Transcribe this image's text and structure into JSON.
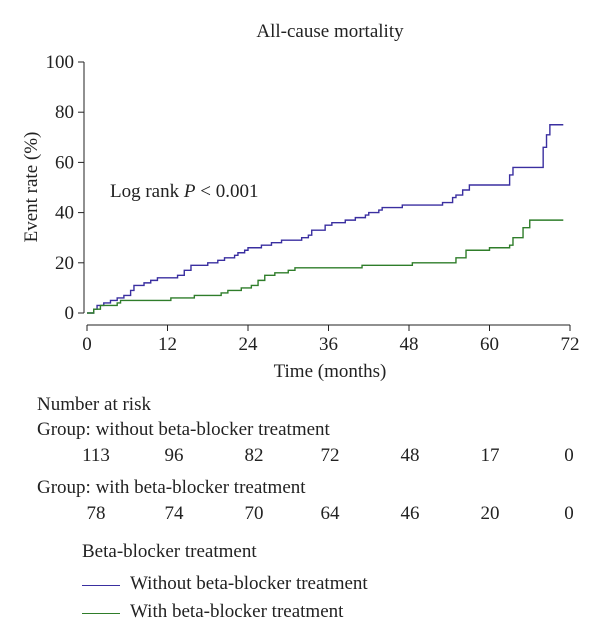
{
  "chart_data": {
    "type": "line",
    "title": "All-cause mortality",
    "xlabel": "Time (months)",
    "ylabel": "Event rate (%)",
    "xlim": [
      0,
      72
    ],
    "ylim": [
      0,
      100
    ],
    "xticks": [
      0,
      12,
      24,
      36,
      48,
      60,
      72
    ],
    "yticks": [
      0,
      20,
      40,
      60,
      80,
      100
    ],
    "grid": false,
    "step": true,
    "annotation": {
      "prefix": "Log rank ",
      "italic": "P",
      "suffix": " < 0.001"
    },
    "series": [
      {
        "name": "Without beta-blocker treatment",
        "color": "#3a2fa0",
        "points": [
          [
            0,
            0
          ],
          [
            1,
            0
          ],
          [
            1,
            1.5
          ],
          [
            1.5,
            3
          ],
          [
            2.5,
            4
          ],
          [
            3.5,
            5
          ],
          [
            4.5,
            6
          ],
          [
            5.5,
            7
          ],
          [
            6.5,
            9
          ],
          [
            7,
            11
          ],
          [
            8.5,
            12
          ],
          [
            9.5,
            13
          ],
          [
            10.5,
            14
          ],
          [
            13.5,
            15
          ],
          [
            14.5,
            17
          ],
          [
            15.5,
            19
          ],
          [
            18,
            20
          ],
          [
            19.5,
            21
          ],
          [
            20.5,
            22
          ],
          [
            22,
            23
          ],
          [
            22.5,
            24
          ],
          [
            23.5,
            25
          ],
          [
            24,
            26
          ],
          [
            26,
            27
          ],
          [
            27.5,
            28
          ],
          [
            29,
            29
          ],
          [
            32,
            30
          ],
          [
            33,
            31
          ],
          [
            33.5,
            33
          ],
          [
            35.5,
            35
          ],
          [
            36.5,
            36
          ],
          [
            38.5,
            37
          ],
          [
            40,
            38
          ],
          [
            41.5,
            39
          ],
          [
            42,
            40
          ],
          [
            43.5,
            41
          ],
          [
            44,
            42
          ],
          [
            47,
            43
          ],
          [
            53,
            44
          ],
          [
            54.5,
            46
          ],
          [
            55,
            47
          ],
          [
            56,
            49
          ],
          [
            57,
            51
          ],
          [
            63,
            55
          ],
          [
            63.5,
            58
          ],
          [
            68,
            66
          ],
          [
            68.5,
            71
          ],
          [
            69,
            75
          ],
          [
            71,
            75
          ]
        ]
      },
      {
        "name": "With beta-blocker treatment",
        "color": "#2f7d2a",
        "points": [
          [
            0,
            0
          ],
          [
            1,
            0
          ],
          [
            1,
            1.5
          ],
          [
            2,
            3
          ],
          [
            2.5,
            3
          ],
          [
            4.5,
            4
          ],
          [
            5,
            5
          ],
          [
            12.5,
            6
          ],
          [
            16,
            7
          ],
          [
            20,
            8
          ],
          [
            21,
            9
          ],
          [
            23,
            10
          ],
          [
            24.5,
            11
          ],
          [
            25.5,
            13
          ],
          [
            26.5,
            15
          ],
          [
            28,
            16
          ],
          [
            30,
            17
          ],
          [
            31,
            18
          ],
          [
            41,
            19
          ],
          [
            48.5,
            20
          ],
          [
            55,
            22
          ],
          [
            56.5,
            25
          ],
          [
            60,
            26
          ],
          [
            63,
            27
          ],
          [
            63.5,
            30
          ],
          [
            65,
            34
          ],
          [
            66,
            37
          ],
          [
            71,
            37
          ]
        ]
      }
    ]
  },
  "risk_table": {
    "heading": "Number at risk",
    "groups": [
      {
        "label": "Group: without beta-blocker treatment",
        "values": [
          "113",
          "96",
          "82",
          "72",
          "48",
          "17",
          "0"
        ]
      },
      {
        "label": "Group: with beta-blocker treatment",
        "values": [
          "78",
          "74",
          "70",
          "64",
          "46",
          "20",
          "0"
        ]
      }
    ]
  },
  "legend": {
    "title": "Beta-blocker treatment",
    "items": [
      {
        "label": "Without beta-blocker treatment",
        "color": "#3a2fa0"
      },
      {
        "label": "With beta-blocker treatment",
        "color": "#2f7d2a"
      }
    ]
  }
}
